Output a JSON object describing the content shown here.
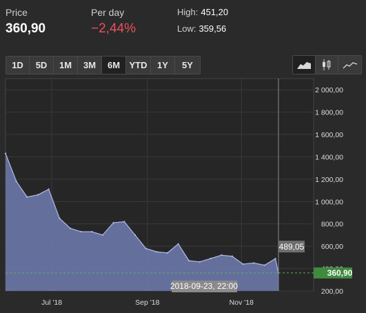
{
  "stats": {
    "price_label": "Price",
    "price_value": "360,90",
    "change_label": "Per day",
    "change_value": "−2,44%",
    "high_label": "High:",
    "high_value": "451,20",
    "low_label": "Low:",
    "low_value": "359,56"
  },
  "ranges": [
    "1D",
    "5D",
    "1M",
    "3M",
    "6M",
    "YTD",
    "1Y",
    "5Y"
  ],
  "active_range": "6M",
  "chart_types": [
    {
      "name": "area-chart-icon",
      "active": true
    },
    {
      "name": "candlestick-icon",
      "active": false
    },
    {
      "name": "line-chart-icon",
      "active": false
    }
  ],
  "colors": {
    "area_fill": "#6b78a8",
    "area_line": "#aab6e0",
    "negative": "#e8505b",
    "current_price_badge": "#3f8a3f"
  },
  "chart_data": {
    "type": "area",
    "x": [
      "2018-06-01",
      "2018-06-08",
      "2018-06-15",
      "2018-06-22",
      "2018-06-29",
      "2018-07-06",
      "2018-07-13",
      "2018-07-20",
      "2018-07-27",
      "2018-08-03",
      "2018-08-10",
      "2018-08-17",
      "2018-08-24",
      "2018-08-31",
      "2018-09-07",
      "2018-09-14",
      "2018-09-21",
      "2018-09-28",
      "2018-10-05",
      "2018-10-12",
      "2018-10-19",
      "2018-10-26",
      "2018-11-02",
      "2018-11-09",
      "2018-11-16",
      "2018-11-23",
      "2018-11-25"
    ],
    "values": [
      1430,
      1180,
      1040,
      1060,
      1110,
      850,
      760,
      730,
      730,
      700,
      810,
      820,
      700,
      580,
      550,
      540,
      620,
      470,
      460,
      490,
      520,
      510,
      440,
      450,
      430,
      489,
      360.9
    ],
    "ylim": [
      200,
      2100
    ],
    "yticks": [
      "200,00",
      "400,00",
      "600,00",
      "800,00",
      "1 000,00",
      "1 200,00",
      "1 400,00",
      "1 600,00",
      "1 800,00",
      "2 000,00"
    ],
    "xticks": [
      "Jul '18",
      "Sep '18",
      "Nov '18"
    ],
    "hover_value": "489,05",
    "hover_date": "2018-09-23, 22:00",
    "current_price": "360,90",
    "grid": true,
    "legend": "none"
  }
}
